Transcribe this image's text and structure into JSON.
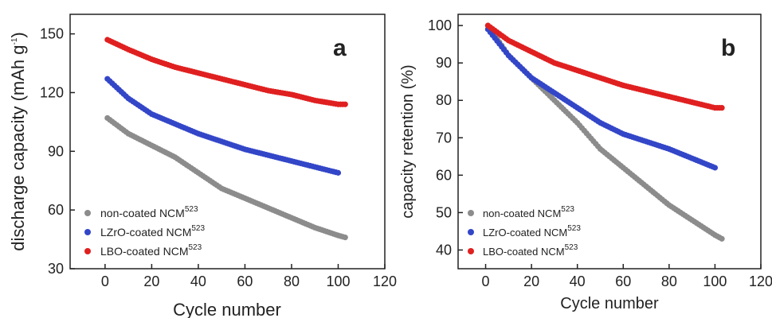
{
  "chart_data": [
    {
      "type": "scatter",
      "panel_label": "a",
      "xlabel": "Cycle number",
      "ylabel": "discharge capacity (mAh g",
      "ylabel_sup": "-1",
      "ylabel_tail": ")",
      "xlim": [
        -15,
        120
      ],
      "ylim": [
        30,
        160
      ],
      "xticks": [
        0,
        20,
        40,
        60,
        80,
        100,
        120
      ],
      "yticks": [
        30,
        60,
        90,
        120,
        150
      ],
      "legend_position": "bottom-left",
      "series": [
        {
          "name": "non-coated NCM",
          "name_sup": "523",
          "color": "#8c8c8c",
          "x": [
            1,
            10,
            20,
            30,
            40,
            50,
            60,
            70,
            80,
            90,
            100,
            103
          ],
          "values": [
            107,
            99,
            93,
            87,
            79,
            71,
            66,
            61,
            56,
            51,
            47,
            46
          ]
        },
        {
          "name": "LZrO-coated NCM",
          "name_sup": "523",
          "color": "#3346c8",
          "x": [
            1,
            10,
            20,
            30,
            40,
            50,
            60,
            70,
            80,
            90,
            100
          ],
          "values": [
            127,
            117,
            109,
            104,
            99,
            95,
            91,
            88,
            85,
            82,
            79
          ]
        },
        {
          "name": "LBO-coated NCM",
          "name_sup": "523",
          "color": "#e02020",
          "x": [
            1,
            10,
            20,
            30,
            40,
            50,
            60,
            70,
            80,
            90,
            100,
            103
          ],
          "values": [
            147,
            142,
            137,
            133,
            130,
            127,
            124,
            121,
            119,
            116,
            114,
            114
          ]
        }
      ]
    },
    {
      "type": "scatter",
      "panel_label": "b",
      "xlabel": "Cycle number",
      "ylabel": "capacity retention (%)",
      "xlim": [
        -12,
        120
      ],
      "ylim": [
        35,
        103
      ],
      "xticks": [
        0,
        20,
        40,
        60,
        80,
        100,
        120
      ],
      "yticks": [
        40,
        50,
        60,
        70,
        80,
        90,
        100
      ],
      "legend_position": "bottom-left",
      "series": [
        {
          "name": "non-coated NCM",
          "name_sup": "523",
          "color": "#8c8c8c",
          "x": [
            1,
            10,
            20,
            30,
            40,
            50,
            60,
            70,
            80,
            90,
            100,
            103
          ],
          "values": [
            100,
            92,
            86,
            80,
            74,
            67,
            62,
            57,
            52,
            48,
            44,
            43
          ]
        },
        {
          "name": "LZrO-coated NCM",
          "name_sup": "523",
          "color": "#3346c8",
          "x": [
            1,
            10,
            20,
            30,
            40,
            50,
            60,
            70,
            80,
            90,
            100
          ],
          "values": [
            99,
            92,
            86,
            82,
            78,
            74,
            71,
            69,
            67,
            64.5,
            62
          ]
        },
        {
          "name": "LBO-coated NCM",
          "name_sup": "523",
          "color": "#e02020",
          "x": [
            1,
            10,
            20,
            30,
            40,
            50,
            60,
            70,
            80,
            90,
            100,
            103
          ],
          "values": [
            100,
            96,
            93,
            90,
            88,
            86,
            84,
            82.5,
            81,
            79.5,
            78,
            78
          ]
        }
      ]
    }
  ]
}
